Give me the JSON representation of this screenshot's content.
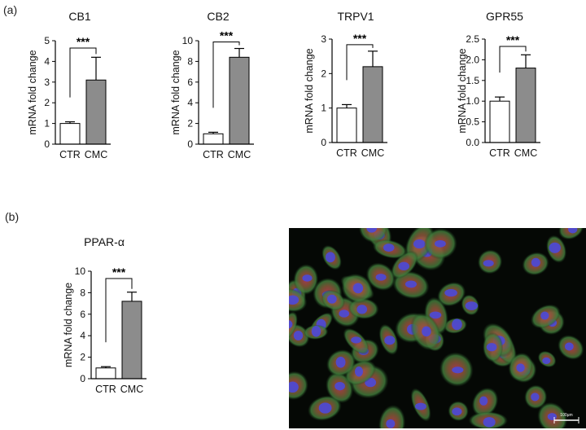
{
  "panels": {
    "a_label": "(a)",
    "b_label": "(b)"
  },
  "colors": {
    "ctr_fill": "#ffffff",
    "cmc_fill": "#8c8c8c",
    "stroke": "#000000"
  },
  "chart_data": [
    {
      "type": "bar",
      "title": "CB1",
      "ylabel": "mRNA fold change",
      "categories": [
        "CTR",
        "CMC"
      ],
      "values": [
        1.0,
        3.1
      ],
      "errors": [
        0.08,
        1.1
      ],
      "ylim": [
        0,
        5
      ],
      "yticks": [
        "0",
        "1",
        "2",
        "3",
        "4",
        "5"
      ],
      "significance": "***"
    },
    {
      "type": "bar",
      "title": "CB2",
      "ylabel": "mRNA fold change",
      "categories": [
        "CTR",
        "CMC"
      ],
      "values": [
        1.0,
        8.4
      ],
      "errors": [
        0.15,
        0.85
      ],
      "ylim": [
        0,
        10
      ],
      "yticks": [
        "0",
        "2",
        "4",
        "6",
        "8",
        "10"
      ],
      "significance": "***"
    },
    {
      "type": "bar",
      "title": "TRPV1",
      "ylabel": "mRNA fold change",
      "categories": [
        "CTR",
        "CMC"
      ],
      "values": [
        1.0,
        2.2
      ],
      "errors": [
        0.1,
        0.45
      ],
      "ylim": [
        0,
        3
      ],
      "yticks": [
        "0",
        "1",
        "2",
        "3"
      ],
      "significance": "***"
    },
    {
      "type": "bar",
      "title": "GPR55",
      "ylabel": "mRNA fold change",
      "categories": [
        "CTR",
        "CMC"
      ],
      "values": [
        1.0,
        1.8
      ],
      "errors": [
        0.1,
        0.32
      ],
      "ylim": [
        0,
        2.5
      ],
      "yticks": [
        "0.0",
        "0.5",
        "1.0",
        "1.5",
        "2.0",
        "2.5"
      ],
      "significance": "***"
    },
    {
      "type": "bar",
      "title": "PPAR-α",
      "ylabel": "mRNA fold change",
      "categories": [
        "CTR",
        "CMC"
      ],
      "values": [
        1.0,
        7.2
      ],
      "errors": [
        0.12,
        0.85
      ],
      "ylim": [
        0,
        10
      ],
      "yticks": [
        "0",
        "2",
        "4",
        "6",
        "8",
        "10"
      ],
      "significance": "***"
    }
  ],
  "micrograph": {
    "scale_bar_label": "100μm"
  }
}
